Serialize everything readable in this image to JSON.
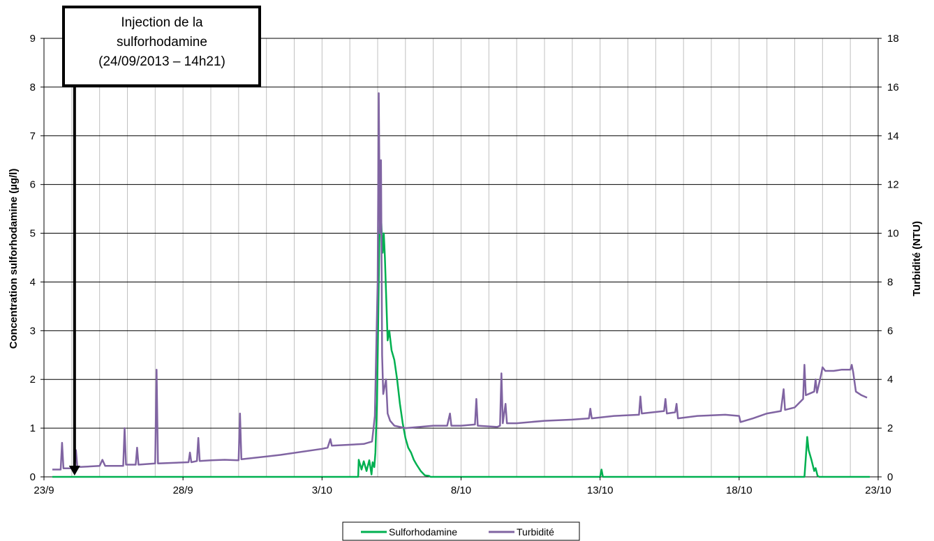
{
  "chart_data": {
    "type": "line",
    "x_unit": "day of month (23/9 → 23/10, 2013)",
    "x_ticks": [
      "23/9",
      "28/9",
      "3/10",
      "8/10",
      "13/10",
      "18/10",
      "23/10"
    ],
    "xlim": [
      0,
      30
    ],
    "y_left": {
      "label": "Concentration sulforhodamine (µg/l)",
      "ylim": [
        0,
        9
      ],
      "ticks": [
        "0",
        "1",
        "2",
        "3",
        "4",
        "5",
        "6",
        "7",
        "8",
        "9"
      ]
    },
    "y_right": {
      "label": "Turbidité (NTU)",
      "ylim": [
        0,
        18
      ],
      "ticks": [
        "0",
        "2",
        "4",
        "6",
        "8",
        "10",
        "12",
        "14",
        "16",
        "18"
      ]
    },
    "grid": true,
    "legend_position": "bottom-center",
    "annotation": {
      "lines": [
        "Injection de la",
        "sulforhodamine",
        "(24/09/2013 – 14h21)"
      ],
      "x": 1.1
    },
    "series": [
      {
        "name": "Sulforhodamine",
        "axis": "left",
        "color": "#00b050",
        "points": [
          [
            0.3,
            0
          ],
          [
            11.3,
            0
          ],
          [
            11.32,
            0.35
          ],
          [
            11.42,
            0.15
          ],
          [
            11.5,
            0.32
          ],
          [
            11.6,
            0.12
          ],
          [
            11.7,
            0.34
          ],
          [
            11.78,
            0.05
          ],
          [
            11.82,
            0.3
          ],
          [
            11.88,
            0.2
          ],
          [
            11.92,
            0.5
          ],
          [
            11.98,
            1.6
          ],
          [
            12.02,
            3.2
          ],
          [
            12.06,
            4.8
          ],
          [
            12.1,
            5.65
          ],
          [
            12.14,
            5.1
          ],
          [
            12.18,
            4.6
          ],
          [
            12.22,
            5.0
          ],
          [
            12.26,
            4.5
          ],
          [
            12.3,
            3.8
          ],
          [
            12.36,
            2.8
          ],
          [
            12.42,
            3.0
          ],
          [
            12.5,
            2.6
          ],
          [
            12.6,
            2.4
          ],
          [
            12.7,
            2.0
          ],
          [
            12.8,
            1.5
          ],
          [
            12.9,
            1.1
          ],
          [
            13.0,
            0.8
          ],
          [
            13.1,
            0.6
          ],
          [
            13.2,
            0.5
          ],
          [
            13.3,
            0.35
          ],
          [
            13.4,
            0.25
          ],
          [
            13.55,
            0.12
          ],
          [
            13.7,
            0.03
          ],
          [
            13.85,
            0.02
          ],
          [
            13.9,
            0
          ],
          [
            20.0,
            0
          ],
          [
            20.05,
            0.15
          ],
          [
            20.1,
            0.0
          ],
          [
            27.35,
            0
          ],
          [
            27.4,
            0.4
          ],
          [
            27.45,
            0.82
          ],
          [
            27.5,
            0.55
          ],
          [
            27.6,
            0.35
          ],
          [
            27.7,
            0.12
          ],
          [
            27.75,
            0.18
          ],
          [
            27.82,
            0.02
          ],
          [
            27.88,
            0
          ],
          [
            29.7,
            0
          ]
        ]
      },
      {
        "name": "Turbidité",
        "axis": "right",
        "color": "#8064a2",
        "points": [
          [
            0.3,
            0.3
          ],
          [
            0.6,
            0.3
          ],
          [
            0.65,
            1.4
          ],
          [
            0.7,
            0.35
          ],
          [
            1.1,
            0.35
          ],
          [
            1.15,
            1.1
          ],
          [
            1.2,
            0.4
          ],
          [
            2.0,
            0.45
          ],
          [
            2.1,
            0.7
          ],
          [
            2.2,
            0.45
          ],
          [
            2.85,
            0.45
          ],
          [
            2.9,
            2.0
          ],
          [
            2.95,
            0.5
          ],
          [
            3.3,
            0.5
          ],
          [
            3.35,
            1.2
          ],
          [
            3.4,
            0.5
          ],
          [
            4.0,
            0.55
          ],
          [
            4.05,
            4.4
          ],
          [
            4.1,
            0.55
          ],
          [
            5.2,
            0.6
          ],
          [
            5.25,
            1.0
          ],
          [
            5.3,
            0.6
          ],
          [
            5.5,
            0.65
          ],
          [
            5.55,
            1.6
          ],
          [
            5.6,
            0.65
          ],
          [
            6.0,
            0.68
          ],
          [
            6.5,
            0.7
          ],
          [
            7.0,
            0.68
          ],
          [
            7.05,
            2.6
          ],
          [
            7.1,
            0.72
          ],
          [
            8.5,
            0.9
          ],
          [
            10.0,
            1.15
          ],
          [
            10.2,
            1.2
          ],
          [
            10.3,
            1.55
          ],
          [
            10.35,
            1.28
          ],
          [
            11.5,
            1.35
          ],
          [
            11.8,
            1.45
          ],
          [
            11.9,
            2.5
          ],
          [
            12.0,
            8.0
          ],
          [
            12.04,
            15.75
          ],
          [
            12.08,
            10.0
          ],
          [
            12.12,
            13.0
          ],
          [
            12.16,
            5.0
          ],
          [
            12.2,
            3.4
          ],
          [
            12.3,
            4.0
          ],
          [
            12.36,
            2.6
          ],
          [
            12.45,
            2.3
          ],
          [
            12.6,
            2.1
          ],
          [
            13.0,
            2.0
          ],
          [
            13.5,
            2.05
          ],
          [
            14.0,
            2.1
          ],
          [
            14.5,
            2.1
          ],
          [
            14.6,
            2.6
          ],
          [
            14.65,
            2.1
          ],
          [
            15.0,
            2.1
          ],
          [
            15.5,
            2.15
          ],
          [
            15.55,
            3.2
          ],
          [
            15.6,
            2.1
          ],
          [
            16.3,
            2.05
          ],
          [
            16.4,
            2.1
          ],
          [
            16.45,
            4.25
          ],
          [
            16.5,
            2.2
          ],
          [
            16.6,
            3.0
          ],
          [
            16.65,
            2.2
          ],
          [
            17.0,
            2.2
          ],
          [
            18.0,
            2.3
          ],
          [
            19.0,
            2.35
          ],
          [
            19.6,
            2.4
          ],
          [
            19.65,
            2.8
          ],
          [
            19.7,
            2.4
          ],
          [
            20.5,
            2.5
          ],
          [
            21.4,
            2.55
          ],
          [
            21.45,
            3.3
          ],
          [
            21.5,
            2.6
          ],
          [
            22.3,
            2.7
          ],
          [
            22.35,
            3.2
          ],
          [
            22.4,
            2.6
          ],
          [
            22.7,
            2.65
          ],
          [
            22.75,
            3.0
          ],
          [
            22.8,
            2.4
          ],
          [
            23.5,
            2.5
          ],
          [
            24.5,
            2.55
          ],
          [
            25.0,
            2.5
          ],
          [
            25.05,
            2.25
          ],
          [
            25.5,
            2.4
          ],
          [
            26.0,
            2.6
          ],
          [
            26.5,
            2.7
          ],
          [
            26.6,
            3.6
          ],
          [
            26.65,
            2.75
          ],
          [
            27.0,
            2.85
          ],
          [
            27.3,
            3.2
          ],
          [
            27.35,
            4.6
          ],
          [
            27.4,
            3.35
          ],
          [
            27.5,
            3.4
          ],
          [
            27.7,
            3.5
          ],
          [
            27.75,
            4.0
          ],
          [
            27.8,
            3.45
          ],
          [
            27.95,
            4.2
          ],
          [
            28.0,
            4.5
          ],
          [
            28.1,
            4.35
          ],
          [
            28.4,
            4.35
          ],
          [
            28.7,
            4.4
          ],
          [
            29.0,
            4.4
          ],
          [
            29.05,
            4.6
          ],
          [
            29.1,
            4.3
          ],
          [
            29.2,
            3.5
          ],
          [
            29.4,
            3.35
          ],
          [
            29.6,
            3.25
          ]
        ]
      }
    ]
  }
}
